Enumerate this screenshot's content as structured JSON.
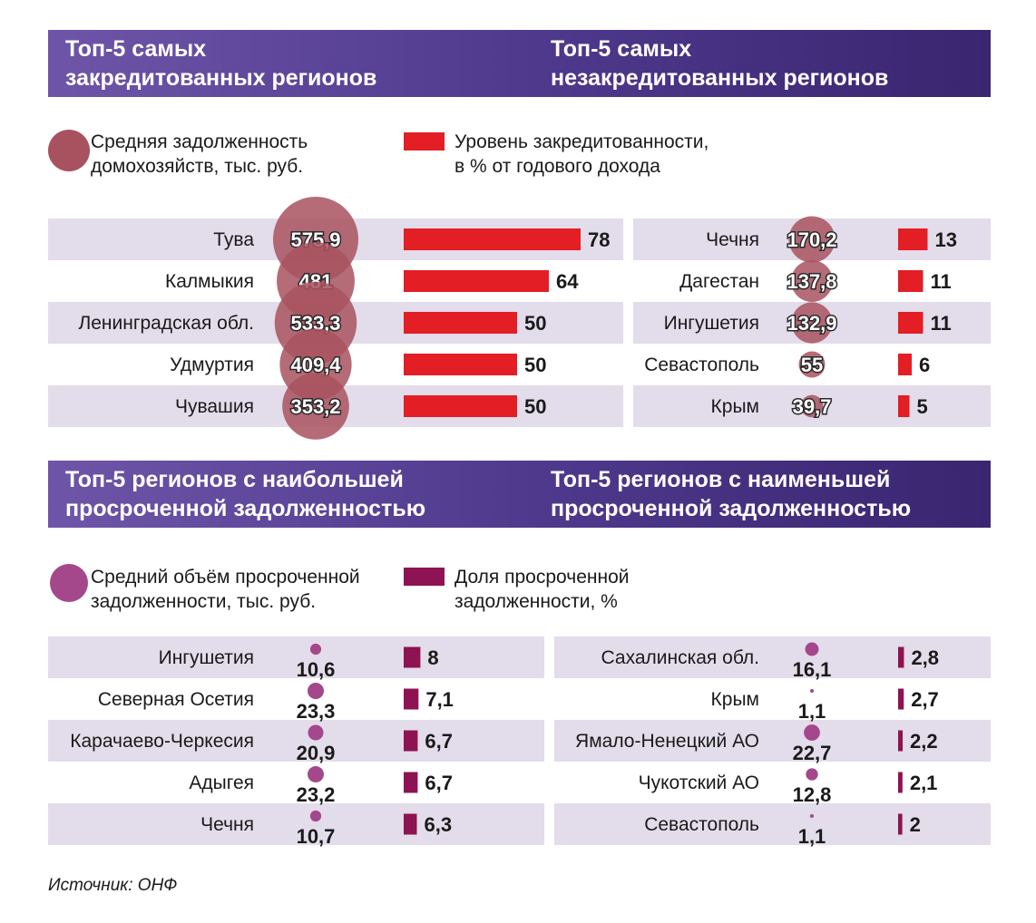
{
  "colors": {
    "header": "#4c2d86",
    "row_stripe": "#e3dcea",
    "credit_bar": "#e31e24",
    "credit_bubble": "#a8525f",
    "overdue_bar": "#8e1352",
    "overdue_dot": "#a4478b"
  },
  "source": "Источник: ОНФ",
  "chart_data": [
    {
      "type": "bar",
      "title": "Топ-5 самых закредитованных регионов",
      "categories": [
        "Тува",
        "Калмыкия",
        "Ленинградская обл.",
        "Удмуртия",
        "Чувашия"
      ],
      "series": [
        {
          "name": "Средняя задолженность домохозяйств, тыс. руб.",
          "values": [
            575.9,
            481,
            533.3,
            409.4,
            353.2
          ],
          "labels": [
            "575,9",
            "481",
            "533,3",
            "409,4",
            "353,2"
          ]
        },
        {
          "name": "Уровень закредитованности, в % от годового дохода",
          "values": [
            78,
            64,
            50,
            50,
            50
          ],
          "labels": [
            "78",
            "64",
            "50",
            "50",
            "50"
          ]
        }
      ]
    },
    {
      "type": "bar",
      "title": "Топ-5 самых незакредитованных регионов",
      "categories": [
        "Чечня",
        "Дагестан",
        "Ингушетия",
        "Севастополь",
        "Крым"
      ],
      "series": [
        {
          "name": "Средняя задолженность домохозяйств, тыс. руб.",
          "values": [
            170.2,
            137.8,
            132.9,
            55,
            39.7
          ],
          "labels": [
            "170,2",
            "137,8",
            "132,9",
            "55",
            "39,7"
          ]
        },
        {
          "name": "Уровень закредитованности, в % от годового дохода",
          "values": [
            13,
            11,
            11,
            6,
            5
          ],
          "labels": [
            "13",
            "11",
            "11",
            "6",
            "5"
          ]
        }
      ]
    },
    {
      "type": "bar",
      "title": "Топ-5 регионов с наибольшей просроченной задолженностью",
      "categories": [
        "Ингушетия",
        "Северная Осетия",
        "Карачаево-Черкесия",
        "Адыгея",
        "Чечня"
      ],
      "series": [
        {
          "name": "Средний объём просроченной задолженности, тыс. руб.",
          "values": [
            10.6,
            23.3,
            20.9,
            23.2,
            10.7
          ],
          "labels": [
            "10,6",
            "23,3",
            "20,9",
            "23,2",
            "10,7"
          ]
        },
        {
          "name": "Доля просроченной задолженности, %",
          "values": [
            8,
            7.1,
            6.7,
            6.7,
            6.3
          ],
          "labels": [
            "8",
            "7,1",
            "6,7",
            "6,7",
            "6,3"
          ]
        }
      ]
    },
    {
      "type": "bar",
      "title": "Топ-5 регионов с наименьшей просроченной задолженностью",
      "categories": [
        "Сахалинская обл.",
        "Крым",
        "Ямало-Ненецкий АО",
        "Чукотский АО",
        "Севастополь"
      ],
      "series": [
        {
          "name": "Средний объём просроченной задолженности, тыс. руб.",
          "values": [
            16.1,
            1.1,
            22.7,
            12.8,
            1.1
          ],
          "labels": [
            "16,1",
            "1,1",
            "22,7",
            "12,8",
            "1,1"
          ]
        },
        {
          "name": "Доля просроченной задолженности, %",
          "values": [
            2.8,
            2.7,
            2.2,
            2.1,
            2
          ],
          "labels": [
            "2,8",
            "2,7",
            "2,2",
            "2,1",
            "2"
          ]
        }
      ]
    }
  ],
  "headers": {
    "left_top": [
      "Топ-5 самых",
      "закредитованных регионов"
    ],
    "right_top": [
      "Топ-5 самых",
      "незакредитованных регионов"
    ],
    "left_bottom": [
      "Топ-5 регионов с наибольшей",
      "просроченной задолженностью"
    ],
    "right_bottom": [
      "Топ-5 регионов с наименьшей",
      "просроченной задолженностью"
    ]
  },
  "legends": {
    "top_circle": [
      "Средняя задолженность",
      "домохозяйств, тыс. руб."
    ],
    "top_bar": [
      "Уровень закредитованности,",
      "в % от годового дохода"
    ],
    "bottom_circle": [
      "Средний объём просроченной",
      "задолженности, тыс. руб."
    ],
    "bottom_bar": [
      "Доля просроченной",
      "задолженности, %"
    ]
  }
}
